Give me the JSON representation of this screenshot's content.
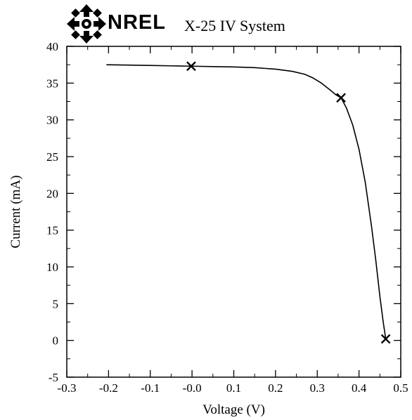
{
  "header": {
    "logo_text": "NREL",
    "system_name": "X-25 IV System",
    "logo_icon": "nrel-arrows-logo"
  },
  "chart_data": {
    "type": "line",
    "xlabel": "Voltage (V)",
    "ylabel": "Current (mA)",
    "xlim": [
      -0.3,
      0.5
    ],
    "ylim": [
      -5,
      40
    ],
    "x_ticks": [
      -0.3,
      -0.2,
      -0.1,
      0.0,
      0.1,
      0.2,
      0.3,
      0.4,
      0.5
    ],
    "x_tick_labels": [
      "-0.3",
      "-0.2",
      "-0.1",
      "-0.0",
      "0.1",
      "0.2",
      "0.3",
      "0.4",
      "0.5"
    ],
    "y_ticks": [
      -5,
      0,
      5,
      10,
      15,
      20,
      25,
      30,
      35,
      40
    ],
    "y_tick_labels": [
      "-5",
      "0",
      "5",
      "10",
      "15",
      "20",
      "25",
      "30",
      "35",
      "40"
    ],
    "grid": false,
    "series": [
      {
        "x": [
          -0.205,
          -0.15,
          -0.1,
          -0.05,
          0.0,
          0.05,
          0.1,
          0.15,
          0.2,
          0.24,
          0.27,
          0.29,
          0.31,
          0.33,
          0.345,
          0.357,
          0.37,
          0.385,
          0.4,
          0.415,
          0.43,
          0.44,
          0.45,
          0.458,
          0.464
        ],
        "y": [
          37.5,
          37.45,
          37.4,
          37.35,
          37.3,
          37.25,
          37.2,
          37.1,
          36.9,
          36.6,
          36.2,
          35.7,
          35.0,
          34.1,
          33.4,
          33.0,
          31.6,
          29.3,
          26.0,
          21.5,
          15.5,
          11.0,
          6.0,
          2.5,
          0.2
        ]
      }
    ],
    "markers": [
      {
        "x": -0.002,
        "y": 37.3,
        "symbol": "x"
      },
      {
        "x": 0.357,
        "y": 33.0,
        "symbol": "x"
      },
      {
        "x": 0.464,
        "y": 0.2,
        "symbol": "x"
      }
    ]
  }
}
